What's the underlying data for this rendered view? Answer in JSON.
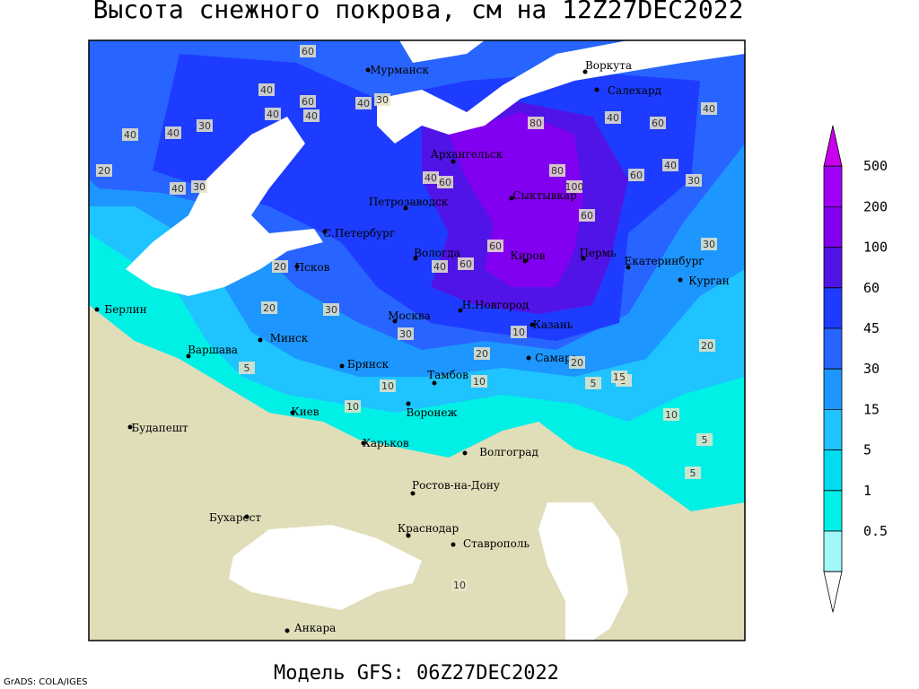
{
  "title": "Высота снежного покрова, см на 12Z27DEC2022",
  "footer": "Модель GFS: 06Z27DEC2022",
  "credit": "GrADS: COLA/IGES",
  "colorbar": {
    "levels": [
      500,
      200,
      100,
      60,
      45,
      30,
      15,
      5,
      1,
      0.5
    ],
    "colors": [
      "#c800f0",
      "#a000fa",
      "#8200f0",
      "#5014e6",
      "#1e3cff",
      "#2864ff",
      "#1e96ff",
      "#1ec3ff",
      "#00dcf0",
      "#00f0e6",
      "#a0f8f8",
      "#ffffff"
    ]
  },
  "cities": [
    "Мурманск",
    "Воркута",
    "Салехард",
    "Архангельск",
    "Петрозаводск",
    "Сыктывкар",
    "С.Петербург",
    "Вологда",
    "Киров",
    "Пермь",
    "Екатеринбург",
    "Курган",
    "Псков",
    "Берлин",
    "Н.Новгород",
    "Москва",
    "Казань",
    "Минск",
    "Варшава",
    "Самара",
    "Брянск",
    "Тамбов",
    "Киев",
    "Воронеж",
    "Будапешт",
    "Харьков",
    "Волгоград",
    "Ростов-на-Дону",
    "Бухарест",
    "Краснодар",
    "Ставрополь",
    "Анкара"
  ],
  "contour_labels": [
    "40",
    "60",
    "30",
    "40",
    "40",
    "60",
    "40",
    "40",
    "30",
    "40",
    "20",
    "30",
    "40",
    "60",
    "40",
    "80",
    "60",
    "40",
    "80",
    "100",
    "60",
    "40",
    "30",
    "60",
    "40",
    "60",
    "40",
    "60",
    "30",
    "20",
    "20",
    "30",
    "30",
    "20",
    "10",
    "20",
    "5",
    "10",
    "5",
    "10",
    "5",
    "10",
    "5",
    "10",
    "5",
    "20",
    "15",
    "10"
  ]
}
